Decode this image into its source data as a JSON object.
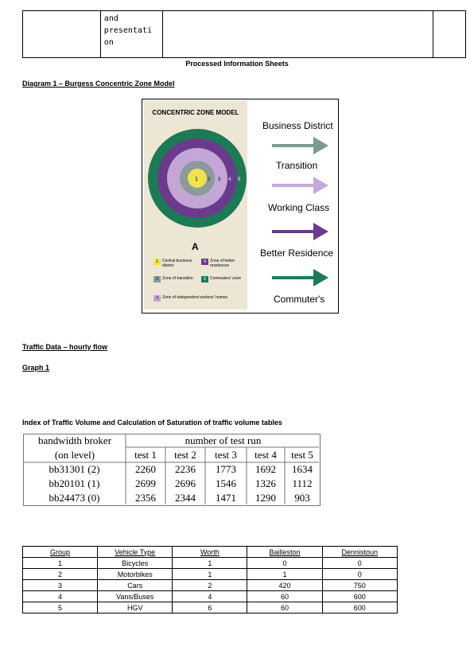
{
  "top_table": {
    "cell_text": "and\npresentati\non"
  },
  "sheet_title": "Processed Information Sheets",
  "diagram_heading": "Diagram 1 – Burgess Concentric Zone Model",
  "diagram": {
    "inner_title": "CONCENTRIC ZONE MODEL",
    "zone_letter": "A",
    "ring_numbers": [
      "1",
      "2",
      "3",
      "4",
      "5"
    ],
    "legend": [
      {
        "num": "1",
        "text": "Central business district",
        "color": "#f2e24a"
      },
      {
        "num": "4",
        "text": "Zone of better residences",
        "color": "#6a3b8c"
      },
      {
        "num": "2",
        "text": "Zone of transition",
        "color": "#8c9a9a"
      },
      {
        "num": "5",
        "text": "Commuters' zone",
        "color": "#1c7a55"
      },
      {
        "num": "3",
        "text": "Zone of independent workers' homes",
        "color": "#c4a6d6"
      }
    ],
    "arrows": [
      {
        "label": "Business District",
        "color": "#7a9a96"
      },
      {
        "label": "Transition",
        "color": "#c7a8d8"
      },
      {
        "label": "Working Class",
        "color": "#6a3b8c"
      },
      {
        "label": "Better Residence",
        "color": "#1e7a5b"
      },
      {
        "label": "Commuter's",
        "color": ""
      }
    ]
  },
  "traffic_heading": "Traffic Data – hourly flow",
  "graph_heading": "Graph 1",
  "index_heading": "Index of Traffic Volume and Calculation of Saturation of traffic volume tables",
  "run_table": {
    "header_left_1": "bandwidth broker",
    "header_left_2": "(on level)",
    "header_right": "number of test run",
    "tests": [
      "test 1",
      "test 2",
      "test 3",
      "test 4",
      "test 5"
    ],
    "rows": [
      {
        "label": "bb31301 (2)",
        "values": [
          "2260",
          "2236",
          "1773",
          "1692",
          "1634"
        ]
      },
      {
        "label": "bb20101 (1)",
        "values": [
          "2699",
          "2696",
          "1546",
          "1326",
          "1112"
        ]
      },
      {
        "label": "bb24473 (0)",
        "values": [
          "2356",
          "2344",
          "1471",
          "1290",
          "903"
        ]
      }
    ]
  },
  "vehicle_table": {
    "headers": [
      "Group",
      "Vehicle Type",
      "Worth",
      "Bailleston",
      "Dennistoun"
    ],
    "rows": [
      [
        "1",
        "Bicycles",
        "1",
        "0",
        "0"
      ],
      [
        "2",
        "Motorbikes",
        "1",
        "1",
        "0"
      ],
      [
        "3",
        "Cars",
        "2",
        "420",
        "750"
      ],
      [
        "4",
        "Vans/Buses",
        "4",
        "60",
        "600"
      ],
      [
        "5",
        "HGV",
        "6",
        "60",
        "600"
      ]
    ]
  }
}
